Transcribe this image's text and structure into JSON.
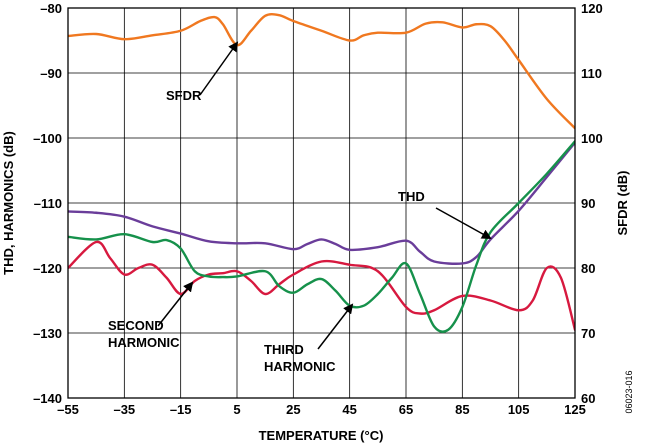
{
  "chart_data": {
    "type": "line",
    "xlabel": "TEMPERATURE (°C)",
    "ylabel_left": "THD, HARMONICS (dB)",
    "ylabel_right": "SFDR (dB)",
    "xlim": [
      -55,
      125
    ],
    "ylim_left": [
      -140,
      -80
    ],
    "ylim_right": [
      60,
      120
    ],
    "x_ticks": [
      -55,
      -35,
      -15,
      5,
      25,
      45,
      65,
      85,
      105,
      125
    ],
    "y_ticks_left": [
      -80,
      -90,
      -100,
      -110,
      -120,
      -130,
      -140
    ],
    "y_ticks_right": [
      120,
      110,
      100,
      90,
      80,
      70,
      60
    ],
    "grid": true,
    "figure_id": "06023-016",
    "series": [
      {
        "name": "SFDR",
        "axis": "right",
        "color": "#F07820",
        "x": [
          -55,
          -45,
          -35,
          -25,
          -15,
          -8,
          -3,
          0,
          5,
          10,
          15,
          20,
          25,
          35,
          45,
          50,
          55,
          65,
          72,
          78,
          85,
          90,
          95,
          100,
          105,
          115,
          125
        ],
        "y": [
          115.7,
          116.0,
          115.2,
          115.8,
          116.5,
          118.0,
          118.6,
          117.5,
          114.3,
          116.5,
          118.8,
          118.9,
          118.0,
          116.5,
          115.0,
          115.8,
          116.2,
          116.2,
          117.6,
          117.8,
          117.0,
          117.5,
          117.2,
          115.0,
          112.0,
          106.0,
          101.5
        ]
      },
      {
        "name": "THD",
        "axis": "left",
        "color": "#6A3D9A",
        "x": [
          -55,
          -45,
          -35,
          -25,
          -15,
          -5,
          5,
          15,
          25,
          30,
          35,
          40,
          45,
          55,
          65,
          70,
          75,
          85,
          90,
          95,
          105,
          115,
          125
        ],
        "y": [
          -111.3,
          -111.5,
          -112.1,
          -113.6,
          -114.7,
          -115.9,
          -116.2,
          -116.2,
          -117.1,
          -116.3,
          -115.6,
          -116.3,
          -117.2,
          -116.8,
          -115.8,
          -117.5,
          -119.0,
          -119.3,
          -118.3,
          -115.6,
          -111.2,
          -106.0,
          -100.7
        ]
      },
      {
        "name": "SECOND HARMONIC",
        "axis": "left",
        "color": "#D7193F",
        "x": [
          -55,
          -45,
          -40,
          -35,
          -30,
          -25,
          -20,
          -15,
          -10,
          -5,
          0,
          5,
          10,
          15,
          20,
          25,
          35,
          45,
          55,
          65,
          70,
          75,
          85,
          95,
          105,
          110,
          115,
          120,
          125
        ],
        "y": [
          -120.0,
          -116.0,
          -118.5,
          -121.0,
          -120.0,
          -119.5,
          -121.5,
          -124.0,
          -122.0,
          -121.0,
          -120.8,
          -120.5,
          -122.0,
          -124.0,
          -122.5,
          -121.0,
          -119.0,
          -119.5,
          -120.5,
          -126.0,
          -127.0,
          -126.5,
          -124.3,
          -125.0,
          -126.5,
          -125.0,
          -120.0,
          -121.5,
          -129.5
        ]
      },
      {
        "name": "THIRD HARMONIC",
        "axis": "left",
        "color": "#16914B",
        "x": [
          -55,
          -45,
          -35,
          -25,
          -20,
          -15,
          -10,
          -5,
          0,
          5,
          15,
          20,
          25,
          30,
          35,
          40,
          45,
          50,
          55,
          60,
          65,
          70,
          75,
          80,
          85,
          90,
          95,
          105,
          115,
          125
        ],
        "y": [
          -115.2,
          -115.6,
          -114.8,
          -116.0,
          -115.7,
          -117.0,
          -120.5,
          -121.3,
          -121.4,
          -121.3,
          -120.5,
          -122.8,
          -123.8,
          -122.5,
          -121.7,
          -123.5,
          -125.8,
          -125.8,
          -124.0,
          -121.5,
          -119.3,
          -124.0,
          -129.0,
          -129.5,
          -126.0,
          -119.5,
          -114.5,
          -110.0,
          -105.5,
          -100.5
        ]
      }
    ],
    "annotations": [
      {
        "label": "SFDR",
        "series": "SFDR"
      },
      {
        "label": "THD",
        "series": "THD"
      },
      {
        "label": "SECOND\nHARMONIC",
        "series": "SECOND HARMONIC"
      },
      {
        "label": "THIRD\nHARMONIC",
        "series": "THIRD HARMONIC"
      }
    ]
  }
}
